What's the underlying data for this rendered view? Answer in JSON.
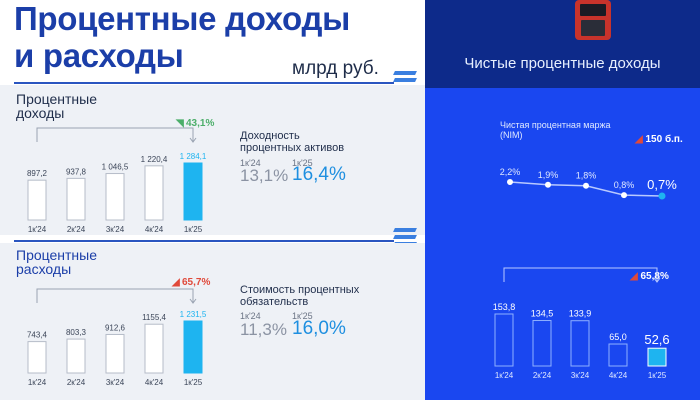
{
  "title_line1": "Процентные доходы",
  "title_line2": "и расходы",
  "unit": "млрд руб.",
  "income": {
    "title_line1": "Процентные",
    "title_line2": "доходы",
    "change": "43,1%",
    "kpi_title_line1": "Доходность",
    "kpi_title_line2": "процентных активов",
    "kpi_prev_label": "1к'24",
    "kpi_curr_label": "1к'25",
    "kpi_prev_value": "13,1%",
    "kpi_curr_value": "16,4%"
  },
  "expense": {
    "title_line1": "Процентные",
    "title_line2": "расходы",
    "change": "65,7%",
    "kpi_title_line1": "Стоимость процентных",
    "kpi_title_line2": "обязательств",
    "kpi_prev_label": "1к'24",
    "kpi_curr_label": "1к'25",
    "kpi_prev_value": "11,3%",
    "kpi_curr_value": "16,0%"
  },
  "right": {
    "title": "Чистые процентные доходы",
    "nim_label_line1": "Чистая процентная маржа",
    "nim_label_line2": "(NIM)",
    "nim_change": "150 б.п.",
    "nii_change": "65,8%"
  },
  "colors": {
    "accent_blue": "#1b3ea8",
    "bar_highlight": "#1eb4f0",
    "right_bg": "#1a47f0",
    "up_arrow": "#e0493a",
    "income_arrow": "#4cae6a"
  },
  "chart_data": [
    {
      "type": "bar",
      "categories": [
        "1к'24",
        "2к'24",
        "3к'24",
        "4к'24",
        "1к'25"
      ],
      "values": [
        897.2,
        937.8,
        1046.5,
        1220.4,
        1284.1
      ],
      "value_labels": [
        "897,2",
        "937,8",
        "1 046,5",
        "1 220,4",
        "1 284,1"
      ]
    },
    {
      "type": "bar",
      "categories": [
        "1к'24",
        "2к'24",
        "3к'24",
        "4к'24",
        "1к'25"
      ],
      "values": [
        743.4,
        803.3,
        912.6,
        1155.4,
        1231.5
      ],
      "value_labels": [
        "743,4",
        "803,3",
        "912,6",
        "1155,4",
        "1 231,5"
      ]
    },
    {
      "type": "line",
      "x": [
        "1к'24",
        "2к'24",
        "3к'24",
        "4к'24",
        "1к'25"
      ],
      "values": [
        2.2,
        1.9,
        1.8,
        0.8,
        0.7
      ],
      "value_labels": [
        "2,2%",
        "1,9%",
        "1,8%",
        "0,8%",
        "0,7%"
      ]
    },
    {
      "type": "bar",
      "categories": [
        "1к'24",
        "2к'24",
        "3к'24",
        "4к'24",
        "1к'25"
      ],
      "values": [
        153.8,
        134.5,
        133.9,
        65.0,
        52.6
      ],
      "value_labels": [
        "153,8",
        "134,5",
        "133,9",
        "65,0",
        "52,6"
      ]
    }
  ]
}
